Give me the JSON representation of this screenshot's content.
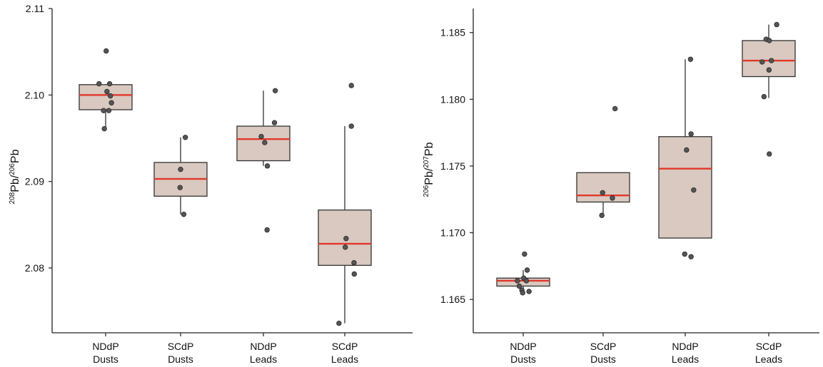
{
  "colors": {
    "box_fill": "#d9c9c0",
    "box_stroke": "#333333",
    "median": "#e0382b",
    "point": "#555555",
    "axis": "#222222"
  },
  "chart_data": [
    {
      "type": "box",
      "ylabel": {
        "sup1": "208",
        "base1": "Pb/",
        "sup2": "206",
        "base2": "Pb"
      },
      "ylim": [
        2.0725,
        2.11
      ],
      "yticks": [
        "2.08",
        "2.09",
        "2.10",
        "2.11"
      ],
      "categories": [
        {
          "line1": "NDdP",
          "line2": "Dusts"
        },
        {
          "line1": "SCdP",
          "line2": "Dusts"
        },
        {
          "line1": "NDdP",
          "line2": "Leads"
        },
        {
          "line1": "SCdP",
          "line2": "Leads"
        }
      ],
      "boxes": [
        {
          "q1": 2.0983,
          "median": 2.1,
          "q3": 2.1012,
          "whisker_low": 2.0961,
          "whisker_high": 2.1012
        },
        {
          "q1": 2.0883,
          "median": 2.0903,
          "q3": 2.0922,
          "whisker_low": 2.0862,
          "whisker_high": 2.0951
        },
        {
          "q1": 2.0924,
          "median": 2.0949,
          "q3": 2.0964,
          "whisker_low": 2.0918,
          "whisker_high": 2.1005
        },
        {
          "q1": 2.0803,
          "median": 2.0828,
          "q3": 2.0867,
          "whisker_low": 2.0736,
          "whisker_high": 2.0964
        }
      ],
      "points": [
        [
          [
            -0.25,
            2.1013
          ],
          [
            0.15,
            2.1013
          ],
          [
            0.05,
            2.1004
          ],
          [
            0.18,
            2.0999
          ],
          [
            0.22,
            2.0991
          ],
          [
            -0.08,
            2.0982
          ],
          [
            0.12,
            2.0982
          ],
          [
            0.02,
            2.1051
          ],
          [
            -0.05,
            2.0961
          ]
        ],
        [
          [
            0.0,
            2.0914
          ],
          [
            -0.02,
            2.0893
          ],
          [
            0.18,
            2.0951
          ],
          [
            0.12,
            2.0862
          ]
        ],
        [
          [
            -0.08,
            2.0952
          ],
          [
            0.05,
            2.0945
          ],
          [
            0.45,
            2.1005
          ],
          [
            0.42,
            2.0968
          ],
          [
            0.15,
            2.0918
          ],
          [
            0.14,
            2.0844
          ]
        ],
        [
          [
            0.25,
            2.1011
          ],
          [
            0.25,
            2.0964
          ],
          [
            0.05,
            2.0834
          ],
          [
            0.02,
            2.0824
          ],
          [
            0.35,
            2.0806
          ],
          [
            0.36,
            2.0793
          ],
          [
            -0.22,
            2.0736
          ]
        ]
      ]
    },
    {
      "type": "box",
      "ylabel": {
        "sup1": "206",
        "base1": "Pb/",
        "sup2": "207",
        "base2": "Pb"
      },
      "ylim": [
        1.1625,
        1.1868
      ],
      "yticks": [
        "1.165",
        "1.170",
        "1.175",
        "1.180",
        "1.185"
      ],
      "categories": [
        {
          "line1": "NDdP",
          "line2": "Dusts"
        },
        {
          "line1": "SCdP",
          "line2": "Dusts"
        },
        {
          "line1": "NDdP",
          "line2": "Leads"
        },
        {
          "line1": "SCdP",
          "line2": "Leads"
        }
      ],
      "boxes": [
        {
          "q1": 1.166,
          "median": 1.1664,
          "q3": 1.1666,
          "whisker_low": 1.1655,
          "whisker_high": 1.1672
        },
        {
          "q1": 1.1723,
          "median": 1.1728,
          "q3": 1.1745,
          "whisker_low": 1.1713,
          "whisker_high": 1.1745
        },
        {
          "q1": 1.1696,
          "median": 1.1748,
          "q3": 1.1772,
          "whisker_low": 1.1696,
          "whisker_high": 1.183
        },
        {
          "q1": 1.1817,
          "median": 1.1829,
          "q3": 1.1844,
          "whisker_low": 1.1801,
          "whisker_high": 1.1856
        }
      ],
      "points": [
        [
          [
            0.05,
            1.1684
          ],
          [
            0.15,
            1.1672
          ],
          [
            -0.22,
            1.1664
          ],
          [
            0.02,
            1.1666
          ],
          [
            0.12,
            1.1664
          ],
          [
            -0.15,
            1.166
          ],
          [
            -0.05,
            1.1657
          ],
          [
            0.22,
            1.1656
          ],
          [
            -0.02,
            1.1655
          ]
        ],
        [
          [
            0.45,
            1.1793
          ],
          [
            -0.02,
            1.173
          ],
          [
            0.35,
            1.1726
          ],
          [
            -0.05,
            1.1713
          ]
        ],
        [
          [
            0.2,
            1.183
          ],
          [
            0.22,
            1.1774
          ],
          [
            0.05,
            1.1762
          ],
          [
            0.32,
            1.1732
          ],
          [
            -0.02,
            1.1684
          ],
          [
            0.22,
            1.1682
          ]
        ],
        [
          [
            0.3,
            1.1856
          ],
          [
            -0.1,
            1.1845
          ],
          [
            0.02,
            1.1844
          ],
          [
            0.1,
            1.1829
          ],
          [
            -0.25,
            1.1828
          ],
          [
            0.01,
            1.1822
          ],
          [
            -0.18,
            1.1802
          ],
          [
            0.02,
            1.1759
          ]
        ]
      ]
    }
  ]
}
